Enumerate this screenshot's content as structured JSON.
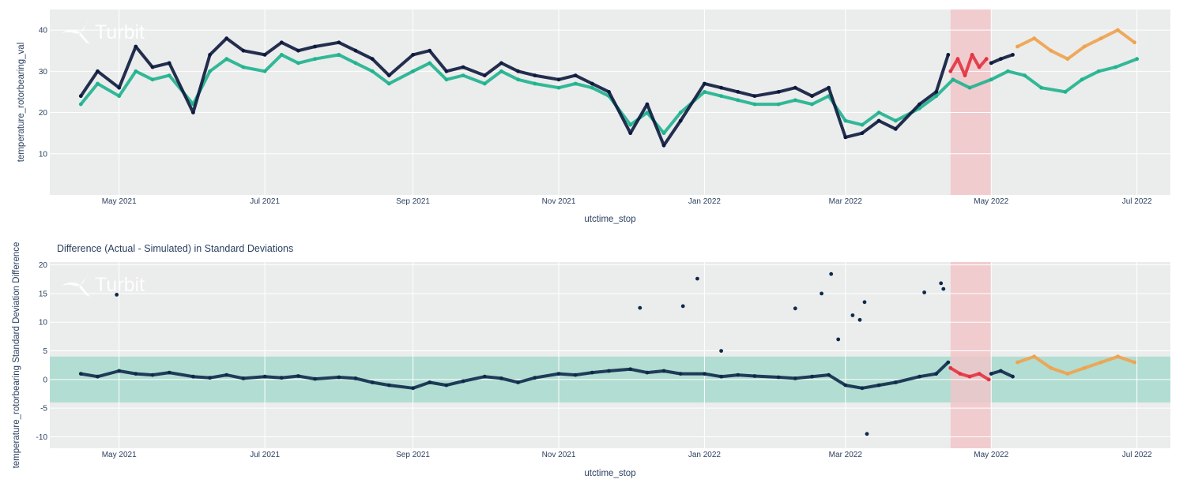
{
  "chart_data": [
    {
      "type": "scatter",
      "title": "",
      "watermark": "Turbit",
      "xlabel": "utctime_stop",
      "ylabel": "temperature_rotorbearing_val",
      "xlim": [
        "2021-04-02",
        "2022-07-15"
      ],
      "ylim": [
        0,
        45
      ],
      "x_ticks": [
        {
          "date": "2021-05-01",
          "label": "May 2021"
        },
        {
          "date": "2021-07-01",
          "label": "Jul 2021"
        },
        {
          "date": "2021-09-01",
          "label": "Sep 2021"
        },
        {
          "date": "2021-11-01",
          "label": "Nov 2021"
        },
        {
          "date": "2022-01-01",
          "label": "Jan 2022"
        },
        {
          "date": "2022-03-01",
          "label": "Mar 2022"
        },
        {
          "date": "2022-05-01",
          "label": "May 2022"
        },
        {
          "date": "2022-07-01",
          "label": "Jul 2022"
        }
      ],
      "y_ticks": [
        10,
        20,
        30,
        40
      ],
      "highlight_band": {
        "start": "2022-04-14",
        "end": "2022-05-01",
        "color": "#f2c4c8"
      },
      "series": [
        {
          "name": "simulated",
          "color": "#1fb38e",
          "x": [
            "2021-04-15",
            "2021-04-22",
            "2021-05-01",
            "2021-05-08",
            "2021-05-15",
            "2021-05-22",
            "2021-06-01",
            "2021-06-08",
            "2021-06-15",
            "2021-06-22",
            "2021-07-01",
            "2021-07-08",
            "2021-07-15",
            "2021-07-22",
            "2021-08-01",
            "2021-08-08",
            "2021-08-15",
            "2021-08-22",
            "2021-09-01",
            "2021-09-08",
            "2021-09-15",
            "2021-09-22",
            "2021-10-01",
            "2021-10-08",
            "2021-10-15",
            "2021-10-22",
            "2021-11-01",
            "2021-11-08",
            "2021-11-15",
            "2021-11-22",
            "2021-12-01",
            "2021-12-08",
            "2021-12-15",
            "2021-12-22",
            "2022-01-01",
            "2022-01-08",
            "2022-01-15",
            "2022-01-22",
            "2022-02-01",
            "2022-02-08",
            "2022-02-15",
            "2022-02-22",
            "2022-03-01",
            "2022-03-08",
            "2022-03-15",
            "2022-03-22",
            "2022-04-01",
            "2022-04-08",
            "2022-04-15",
            "2022-04-22",
            "2022-05-01",
            "2022-05-08",
            "2022-05-15",
            "2022-05-22",
            "2022-06-01",
            "2022-06-08",
            "2022-06-15",
            "2022-06-22",
            "2022-07-01"
          ],
          "y": [
            22,
            27,
            24,
            30,
            28,
            29,
            22,
            30,
            33,
            31,
            30,
            34,
            32,
            33,
            34,
            32,
            30,
            27,
            30,
            32,
            28,
            29,
            27,
            30,
            28,
            27,
            26,
            27,
            26,
            24,
            17,
            20,
            15,
            20,
            25,
            24,
            23,
            22,
            22,
            23,
            22,
            24,
            18,
            17,
            20,
            18,
            21,
            24,
            28,
            26,
            28,
            30,
            29,
            26,
            25,
            28,
            30,
            31,
            33
          ]
        },
        {
          "name": "actual_normal",
          "color": "#0d1a3d",
          "x": [
            "2021-04-15",
            "2021-04-22",
            "2021-05-01",
            "2021-05-08",
            "2021-05-15",
            "2021-05-22",
            "2021-06-01",
            "2021-06-08",
            "2021-06-15",
            "2021-06-22",
            "2021-07-01",
            "2021-07-08",
            "2021-07-15",
            "2021-07-22",
            "2021-08-01",
            "2021-08-08",
            "2021-08-15",
            "2021-08-22",
            "2021-09-01",
            "2021-09-08",
            "2021-09-15",
            "2021-09-22",
            "2021-10-01",
            "2021-10-08",
            "2021-10-15",
            "2021-10-22",
            "2021-11-01",
            "2021-11-08",
            "2021-11-15",
            "2021-11-22",
            "2021-12-01",
            "2021-12-08",
            "2021-12-15",
            "2021-12-22",
            "2022-01-01",
            "2022-01-08",
            "2022-01-15",
            "2022-01-22",
            "2022-02-01",
            "2022-02-08",
            "2022-02-15",
            "2022-02-22",
            "2022-03-01",
            "2022-03-08",
            "2022-03-15",
            "2022-03-22",
            "2022-04-01",
            "2022-04-08",
            "2022-04-13"
          ],
          "y": [
            24,
            30,
            26,
            36,
            31,
            32,
            20,
            34,
            38,
            35,
            34,
            37,
            35,
            36,
            37,
            35,
            33,
            29,
            34,
            35,
            30,
            31,
            29,
            32,
            30,
            29,
            28,
            29,
            27,
            25,
            15,
            22,
            12,
            18,
            27,
            26,
            25,
            24,
            25,
            26,
            24,
            26,
            14,
            15,
            18,
            16,
            22,
            25,
            34
          ]
        },
        {
          "name": "actual_alarm",
          "color": "#e23340",
          "x": [
            "2022-04-14",
            "2022-04-17",
            "2022-04-20",
            "2022-04-23",
            "2022-04-26",
            "2022-04-29"
          ],
          "y": [
            30,
            33,
            29,
            34,
            31,
            33
          ]
        },
        {
          "name": "actual_normal_2",
          "color": "#0d1a3d",
          "x": [
            "2022-05-01",
            "2022-05-05",
            "2022-05-10"
          ],
          "y": [
            32,
            33,
            34
          ]
        },
        {
          "name": "actual_warning",
          "color": "#f0a24c",
          "x": [
            "2022-05-12",
            "2022-05-19",
            "2022-05-26",
            "2022-06-02",
            "2022-06-09",
            "2022-06-16",
            "2022-06-23",
            "2022-06-30"
          ],
          "y": [
            36,
            38,
            35,
            33,
            36,
            38,
            40,
            37
          ]
        }
      ]
    },
    {
      "type": "scatter",
      "title": "Difference (Actual - Simulated) in Standard Deviations",
      "watermark": "Turbit",
      "xlabel": "utctime_stop",
      "ylabel": "temperature_rotorbearing Standard Deviation Difference",
      "xlim": [
        "2021-04-02",
        "2022-07-15"
      ],
      "ylim": [
        -12,
        20.5
      ],
      "x_ticks": [
        {
          "date": "2021-05-01",
          "label": "May 2021"
        },
        {
          "date": "2021-07-01",
          "label": "Jul 2021"
        },
        {
          "date": "2021-09-01",
          "label": "Sep 2021"
        },
        {
          "date": "2021-11-01",
          "label": "Nov 2021"
        },
        {
          "date": "2022-01-01",
          "label": "Jan 2022"
        },
        {
          "date": "2022-03-01",
          "label": "Mar 2022"
        },
        {
          "date": "2022-05-01",
          "label": "May 2022"
        },
        {
          "date": "2022-07-01",
          "label": "Jul 2022"
        }
      ],
      "y_ticks": [
        -10,
        -5,
        0,
        5,
        10,
        15,
        20
      ],
      "threshold_band": {
        "low": -4,
        "high": 4,
        "color": "#9fd8c9"
      },
      "highlight_band": {
        "start": "2022-04-14",
        "end": "2022-05-01",
        "color": "#f2c4c8"
      },
      "series": [
        {
          "name": "difference_normal",
          "color": "#0d2a4a",
          "x": [
            "2021-04-15",
            "2021-04-22",
            "2021-05-01",
            "2021-05-08",
            "2021-05-15",
            "2021-05-22",
            "2021-06-01",
            "2021-06-08",
            "2021-06-15",
            "2021-06-22",
            "2021-07-01",
            "2021-07-08",
            "2021-07-15",
            "2021-07-22",
            "2021-08-01",
            "2021-08-08",
            "2021-08-15",
            "2021-08-22",
            "2021-09-01",
            "2021-09-08",
            "2021-09-15",
            "2021-09-22",
            "2021-10-01",
            "2021-10-08",
            "2021-10-15",
            "2021-10-22",
            "2021-11-01",
            "2021-11-08",
            "2021-11-15",
            "2021-11-22",
            "2021-12-01",
            "2021-12-08",
            "2021-12-15",
            "2021-12-22",
            "2022-01-01",
            "2022-01-08",
            "2022-01-15",
            "2022-01-22",
            "2022-02-01",
            "2022-02-08",
            "2022-02-15",
            "2022-02-22",
            "2022-03-01",
            "2022-03-08",
            "2022-03-15",
            "2022-03-22",
            "2022-04-01",
            "2022-04-08",
            "2022-04-13"
          ],
          "y": [
            1,
            0.5,
            1.5,
            1,
            0.8,
            1.2,
            0.5,
            0.3,
            0.8,
            0.2,
            0.5,
            0.3,
            0.6,
            0.1,
            0.4,
            0.2,
            -0.5,
            -1,
            -1.5,
            -0.5,
            -1,
            -0.3,
            0.5,
            0.2,
            -0.5,
            0.3,
            1,
            0.8,
            1.2,
            1.5,
            1.8,
            1.2,
            1.5,
            1,
            1,
            0.5,
            0.8,
            0.6,
            0.4,
            0.2,
            0.5,
            0.8,
            -1,
            -1.5,
            -1,
            -0.5,
            0.5,
            1,
            3
          ]
        },
        {
          "name": "difference_outliers",
          "color": "#0d2a4a",
          "x": [
            "2021-04-30",
            "2021-12-05",
            "2021-12-23",
            "2021-12-29",
            "2022-01-08",
            "2022-02-08",
            "2022-02-19",
            "2022-02-23",
            "2022-02-26",
            "2022-03-04",
            "2022-03-07",
            "2022-03-09",
            "2022-04-03",
            "2022-04-10",
            "2022-04-11",
            "2022-03-10"
          ],
          "y": [
            14.8,
            12.5,
            12.8,
            17.6,
            5,
            12.4,
            15,
            18.4,
            7,
            11.2,
            10.4,
            13.5,
            15.2,
            16.8,
            15.8,
            -9.5
          ]
        },
        {
          "name": "difference_alarm",
          "color": "#e23340",
          "x": [
            "2022-04-14",
            "2022-04-18",
            "2022-04-22",
            "2022-04-26",
            "2022-04-30"
          ],
          "y": [
            2,
            1,
            0.5,
            1,
            0
          ]
        },
        {
          "name": "difference_normal_2",
          "color": "#0d2a4a",
          "x": [
            "2022-05-01",
            "2022-05-05",
            "2022-05-10"
          ],
          "y": [
            1,
            1.5,
            0.5
          ]
        },
        {
          "name": "difference_warning",
          "color": "#f0a24c",
          "x": [
            "2022-05-12",
            "2022-05-19",
            "2022-05-26",
            "2022-06-02",
            "2022-06-09",
            "2022-06-16",
            "2022-06-23",
            "2022-06-30"
          ],
          "y": [
            3,
            4,
            2,
            1,
            2,
            3,
            4,
            3
          ]
        }
      ]
    }
  ]
}
